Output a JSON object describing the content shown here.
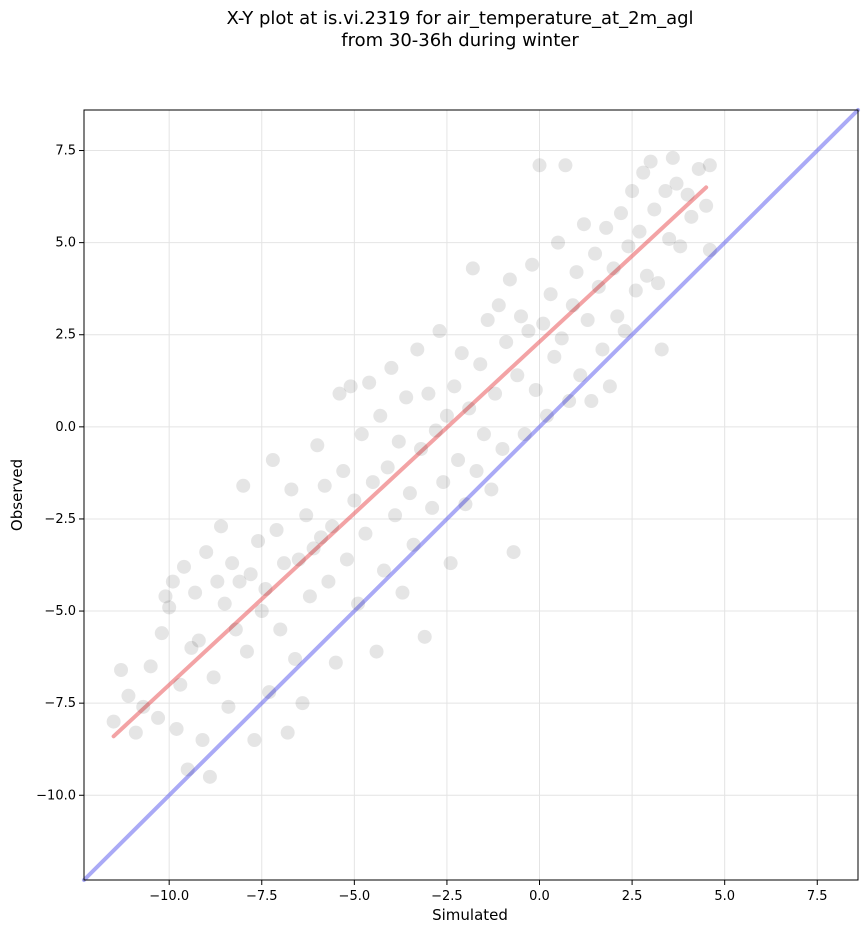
{
  "title_line1": "X-Y plot at is.vi.2319 for air_temperature_at_2m_agl",
  "title_line2": "from 30-36h during winter",
  "chart_data": {
    "type": "scatter",
    "title": "X-Y plot at is.vi.2319 for air_temperature_at_2m_agl from 30-36h during winter",
    "xlabel": "Simulated",
    "ylabel": "Observed",
    "xlim": [
      -12.3,
      8.6
    ],
    "ylim": [
      -12.3,
      8.6
    ],
    "x_ticks": [
      "−10.0",
      "−7.5",
      "−5.0",
      "−2.5",
      "0.0",
      "2.5",
      "5.0",
      "7.5"
    ],
    "x_tick_values": [
      -10.0,
      -7.5,
      -5.0,
      -2.5,
      0.0,
      2.5,
      5.0,
      7.5
    ],
    "y_ticks": [
      "−10.0",
      "−7.5",
      "−5.0",
      "−2.5",
      "0.0",
      "2.5",
      "5.0",
      "7.5"
    ],
    "y_tick_values": [
      -10.0,
      -7.5,
      -5.0,
      -2.5,
      0.0,
      2.5,
      5.0,
      7.5
    ],
    "grid": true,
    "marker_color": "#000000",
    "marker_alpha": 0.1,
    "series": [
      {
        "values": [
          [
            -11.5,
            -8.0
          ],
          [
            -11.3,
            -6.6
          ],
          [
            -11.1,
            -7.3
          ],
          [
            -10.9,
            -8.3
          ],
          [
            -10.7,
            -7.6
          ],
          [
            -10.5,
            -6.5
          ],
          [
            -10.3,
            -7.9
          ],
          [
            -10.2,
            -5.6
          ],
          [
            -10.1,
            -4.6
          ],
          [
            -10.0,
            -4.9
          ],
          [
            -9.9,
            -4.2
          ],
          [
            -9.8,
            -8.2
          ],
          [
            -9.7,
            -7.0
          ],
          [
            -9.6,
            -3.8
          ],
          [
            -9.5,
            -9.3
          ],
          [
            -9.4,
            -6.0
          ],
          [
            -9.3,
            -4.5
          ],
          [
            -9.2,
            -5.8
          ],
          [
            -9.1,
            -8.5
          ],
          [
            -9.0,
            -3.4
          ],
          [
            -8.9,
            -9.5
          ],
          [
            -8.8,
            -6.8
          ],
          [
            -8.7,
            -4.2
          ],
          [
            -8.6,
            -2.7
          ],
          [
            -8.5,
            -4.8
          ],
          [
            -8.4,
            -7.6
          ],
          [
            -8.3,
            -3.7
          ],
          [
            -8.2,
            -5.5
          ],
          [
            -8.1,
            -4.2
          ],
          [
            -8.0,
            -1.6
          ],
          [
            -7.9,
            -6.1
          ],
          [
            -7.8,
            -4.0
          ],
          [
            -7.7,
            -8.5
          ],
          [
            -7.6,
            -3.1
          ],
          [
            -7.5,
            -5.0
          ],
          [
            -7.4,
            -4.4
          ],
          [
            -7.3,
            -7.2
          ],
          [
            -7.2,
            -0.9
          ],
          [
            -7.1,
            -2.8
          ],
          [
            -7.0,
            -5.5
          ],
          [
            -6.9,
            -3.7
          ],
          [
            -6.8,
            -8.3
          ],
          [
            -6.7,
            -1.7
          ],
          [
            -6.6,
            -6.3
          ],
          [
            -6.5,
            -3.6
          ],
          [
            -6.4,
            -7.5
          ],
          [
            -6.3,
            -2.4
          ],
          [
            -6.2,
            -4.6
          ],
          [
            -6.1,
            -3.3
          ],
          [
            -6.0,
            -0.5
          ],
          [
            -5.9,
            -3.0
          ],
          [
            -5.8,
            -1.6
          ],
          [
            -5.7,
            -4.2
          ],
          [
            -5.6,
            -2.7
          ],
          [
            -5.5,
            -6.4
          ],
          [
            -5.4,
            0.9
          ],
          [
            -5.3,
            -1.2
          ],
          [
            -5.2,
            -3.6
          ],
          [
            -5.1,
            1.1
          ],
          [
            -5.0,
            -2.0
          ],
          [
            -4.9,
            -4.8
          ],
          [
            -4.8,
            -0.2
          ],
          [
            -4.7,
            -2.9
          ],
          [
            -4.6,
            1.2
          ],
          [
            -4.5,
            -1.5
          ],
          [
            -4.4,
            -6.1
          ],
          [
            -4.3,
            0.3
          ],
          [
            -4.2,
            -3.9
          ],
          [
            -4.1,
            -1.1
          ],
          [
            -4.0,
            1.6
          ],
          [
            -3.9,
            -2.4
          ],
          [
            -3.8,
            -0.4
          ],
          [
            -3.7,
            -4.5
          ],
          [
            -3.6,
            0.8
          ],
          [
            -3.5,
            -1.8
          ],
          [
            -3.4,
            -3.2
          ],
          [
            -3.3,
            2.1
          ],
          [
            -3.2,
            -0.6
          ],
          [
            -3.1,
            -5.7
          ],
          [
            -3.0,
            0.9
          ],
          [
            -2.9,
            -2.2
          ],
          [
            -2.8,
            -0.1
          ],
          [
            -2.7,
            2.6
          ],
          [
            -2.6,
            -1.5
          ],
          [
            -2.5,
            0.3
          ],
          [
            -2.4,
            -3.7
          ],
          [
            -2.3,
            1.1
          ],
          [
            -2.2,
            -0.9
          ],
          [
            -2.1,
            2.0
          ],
          [
            -2.0,
            -2.1
          ],
          [
            -1.9,
            0.5
          ],
          [
            -1.8,
            4.3
          ],
          [
            -1.7,
            -1.2
          ],
          [
            -1.6,
            1.7
          ],
          [
            -1.5,
            -0.2
          ],
          [
            -1.4,
            2.9
          ],
          [
            -1.3,
            -1.7
          ],
          [
            -1.2,
            0.9
          ],
          [
            -1.1,
            3.3
          ],
          [
            -1.0,
            -0.6
          ],
          [
            -0.9,
            2.3
          ],
          [
            -0.8,
            4.0
          ],
          [
            -0.7,
            -3.4
          ],
          [
            -0.6,
            1.4
          ],
          [
            -0.5,
            3.0
          ],
          [
            -0.4,
            -0.2
          ],
          [
            -0.3,
            2.6
          ],
          [
            -0.2,
            4.4
          ],
          [
            -0.1,
            1.0
          ],
          [
            0.0,
            7.1
          ],
          [
            0.1,
            2.8
          ],
          [
            0.2,
            0.3
          ],
          [
            0.3,
            3.6
          ],
          [
            0.4,
            1.9
          ],
          [
            0.5,
            5.0
          ],
          [
            0.6,
            2.4
          ],
          [
            0.7,
            7.1
          ],
          [
            0.8,
            0.7
          ],
          [
            0.9,
            3.3
          ],
          [
            1.0,
            4.2
          ],
          [
            1.1,
            1.4
          ],
          [
            1.2,
            5.5
          ],
          [
            1.3,
            2.9
          ],
          [
            1.4,
            0.7
          ],
          [
            1.5,
            4.7
          ],
          [
            1.6,
            3.8
          ],
          [
            1.7,
            2.1
          ],
          [
            1.8,
            5.4
          ],
          [
            1.9,
            1.1
          ],
          [
            2.0,
            4.3
          ],
          [
            2.1,
            3.0
          ],
          [
            2.2,
            5.8
          ],
          [
            2.3,
            2.6
          ],
          [
            2.4,
            4.9
          ],
          [
            2.5,
            6.4
          ],
          [
            2.6,
            3.7
          ],
          [
            2.7,
            5.3
          ],
          [
            2.8,
            6.9
          ],
          [
            2.9,
            4.1
          ],
          [
            3.0,
            7.2
          ],
          [
            3.1,
            5.9
          ],
          [
            3.2,
            3.9
          ],
          [
            3.3,
            2.1
          ],
          [
            3.4,
            6.4
          ],
          [
            3.5,
            5.1
          ],
          [
            3.6,
            7.3
          ],
          [
            3.7,
            6.6
          ],
          [
            3.8,
            4.9
          ],
          [
            4.0,
            6.3
          ],
          [
            4.1,
            5.7
          ],
          [
            4.3,
            7.0
          ],
          [
            4.5,
            6.0
          ],
          [
            4.6,
            4.8
          ],
          [
            4.6,
            7.1
          ]
        ]
      }
    ],
    "lines": [
      {
        "color": "#e8474b",
        "from": [
          -11.5,
          -8.4
        ],
        "to": [
          4.5,
          6.5
        ]
      },
      {
        "color": "#5555ee",
        "from": [
          -12.3,
          -12.3
        ],
        "to": [
          8.6,
          8.6
        ]
      }
    ]
  }
}
